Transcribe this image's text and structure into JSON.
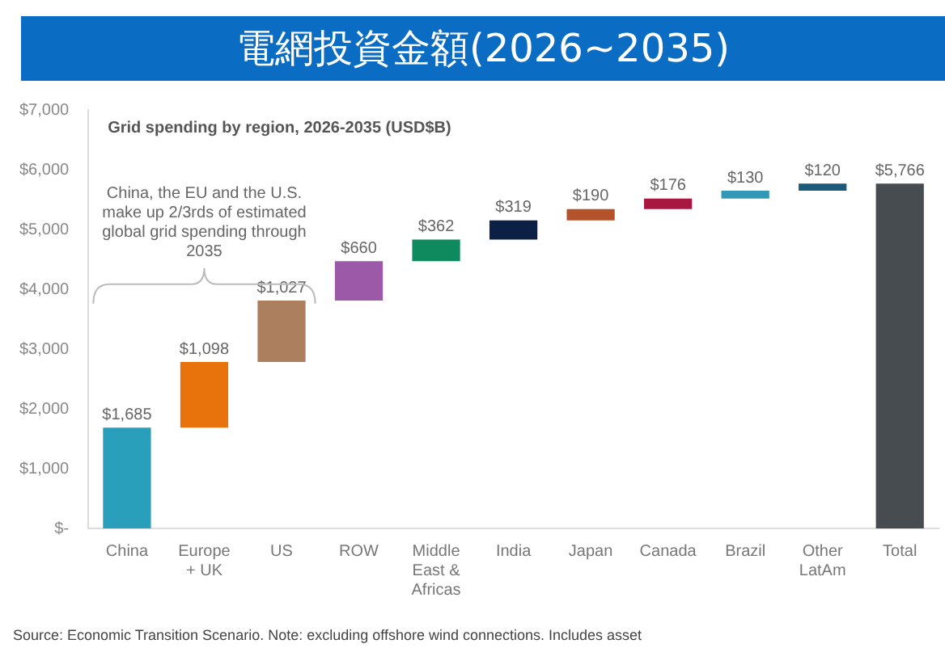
{
  "chart_data": {
    "type": "bar",
    "title": "電網投資金額(2026~2035)",
    "subtitle": "Grid spending by region, 2026-2035 (USD$B)",
    "categories": [
      "China",
      "Europe + UK",
      "US",
      "ROW",
      "Middle East & Africas",
      "India",
      "Japan",
      "Canada",
      "Brazil",
      "Other LatAm",
      "Total"
    ],
    "values": [
      1685,
      1098,
      1027,
      660,
      362,
      319,
      190,
      176,
      130,
      120,
      5766
    ],
    "base": [
      0,
      1685,
      2783,
      3810,
      4470,
      4832,
      5151,
      5341,
      5517,
      5647,
      0
    ],
    "colors": [
      "#2a9fbc",
      "#e8730c",
      "#ac7f5e",
      "#9b59a8",
      "#0f8a5f",
      "#0c1f45",
      "#b5522a",
      "#a8173f",
      "#3597b8",
      "#1a5a7a",
      "#474c50"
    ],
    "value_labels": [
      "$1,685",
      "$1,098",
      "$1,027",
      "$660",
      "$362",
      "$319",
      "$190",
      "$176",
      "$130",
      "$120",
      "$5,766"
    ],
    "ylim": [
      0,
      7000
    ],
    "yticks": [
      {
        "value": 0,
        "label": "$-"
      },
      {
        "value": 1000,
        "label": "$1,000"
      },
      {
        "value": 2000,
        "label": "$2,000"
      },
      {
        "value": 3000,
        "label": "$3,000"
      },
      {
        "value": 4000,
        "label": "$4,000"
      },
      {
        "value": 5000,
        "label": "$5,000"
      },
      {
        "value": 6000,
        "label": "$6,000"
      },
      {
        "value": 7000,
        "label": "$7,000"
      }
    ],
    "grid": false,
    "legend": false,
    "annotations": [
      "China, the EU and the U.S. make up 2/3rds of estimated global grid spending through 2035",
      "Source: Economic Transition Scenario. Note: excluding offshore wind connections. Includes asset"
    ]
  }
}
